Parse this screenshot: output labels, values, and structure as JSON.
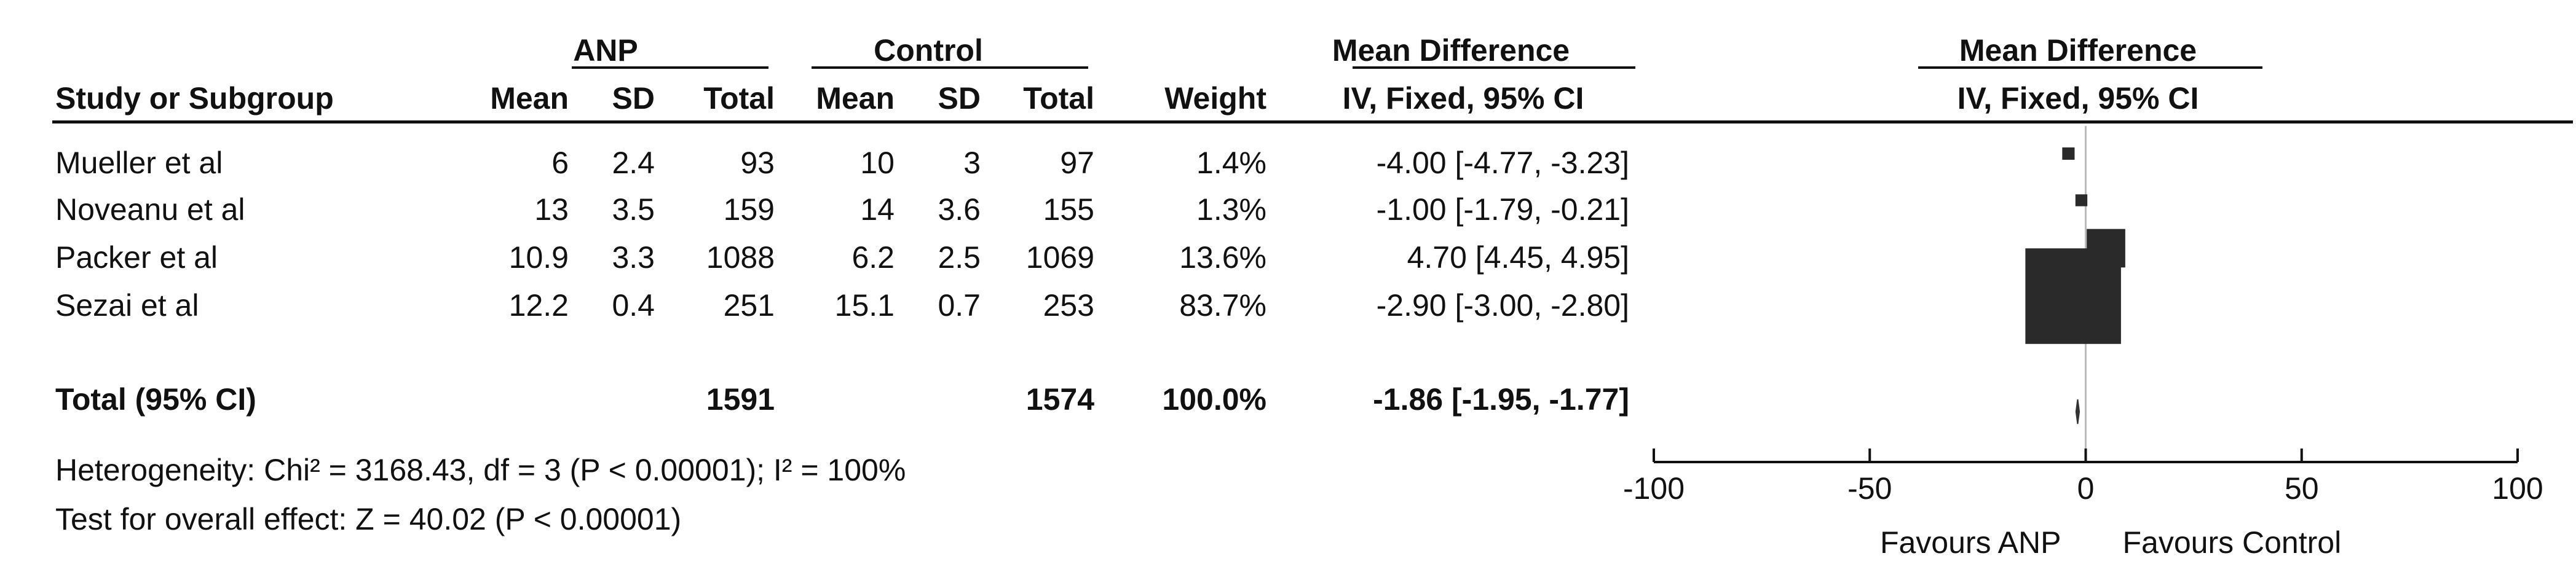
{
  "header": {
    "group_anp": "ANP",
    "group_control": "Control",
    "md_top": "Mean Difference",
    "md_bottom": "IV, Fixed, 95% CI",
    "plot_top": "Mean Difference",
    "plot_bottom": "IV, Fixed, 95% CI",
    "study": "Study or Subgroup",
    "mean": "Mean",
    "sd": "SD",
    "total": "Total",
    "weight": "Weight"
  },
  "studies": [
    {
      "name": "Mueller et al",
      "anp_mean": "6",
      "anp_sd": "2.4",
      "anp_total": "93",
      "ctl_mean": "10",
      "ctl_sd": "3",
      "ctl_total": "97",
      "weight": "1.4%",
      "md": "-4.00 [-4.77, -3.23]"
    },
    {
      "name": "Noveanu et al",
      "anp_mean": "13",
      "anp_sd": "3.5",
      "anp_total": "159",
      "ctl_mean": "14",
      "ctl_sd": "3.6",
      "ctl_total": "155",
      "weight": "1.3%",
      "md": "-1.00 [-1.79, -0.21]"
    },
    {
      "name": "Packer et al",
      "anp_mean": "10.9",
      "anp_sd": "3.3",
      "anp_total": "1088",
      "ctl_mean": "6.2",
      "ctl_sd": "2.5",
      "ctl_total": "1069",
      "weight": "13.6%",
      "md": "4.70 [4.45, 4.95]"
    },
    {
      "name": "Sezai et al",
      "anp_mean": "12.2",
      "anp_sd": "0.4",
      "anp_total": "251",
      "ctl_mean": "15.1",
      "ctl_sd": "0.7",
      "ctl_total": "253",
      "weight": "83.7%",
      "md": "-2.90 [-3.00, -2.80]"
    }
  ],
  "total": {
    "label": "Total (95% CI)",
    "anp_total": "1591",
    "ctl_total": "1574",
    "weight": "100.0%",
    "md": "-1.86 [-1.95, -1.77]"
  },
  "footer": {
    "heterogeneity": "Heterogeneity: Chi² = 3168.43, df = 3 (P < 0.00001); I² = 100%",
    "overall": "Test for overall effect: Z = 40.02 (P < 0.00001)"
  },
  "chart_data": {
    "type": "scatter",
    "title": "Mean Difference",
    "subtitle": "IV, Fixed, 95% CI",
    "xlim": [
      -100,
      100
    ],
    "xticks": [
      -100,
      -50,
      0,
      50,
      100
    ],
    "xtick_labels": [
      "-100",
      "-50",
      "0",
      "50",
      "100"
    ],
    "reference_line": 0,
    "favours_left": "Favours ANP",
    "favours_right": "Favours Control",
    "grid": false,
    "studies": [
      {
        "name": "Mueller et al",
        "md": -4.0,
        "ci": [
          -4.77,
          -3.23
        ],
        "weight": 1.4
      },
      {
        "name": "Noveanu et al",
        "md": -1.0,
        "ci": [
          -1.79,
          -0.21
        ],
        "weight": 1.3
      },
      {
        "name": "Packer et al",
        "md": 4.7,
        "ci": [
          4.45,
          4.95
        ],
        "weight": 13.6
      },
      {
        "name": "Sezai et al",
        "md": -2.9,
        "ci": [
          -3.0,
          -2.8
        ],
        "weight": 83.7
      }
    ],
    "pooled": {
      "name": "Total (95% CI)",
      "md": -1.86,
      "ci": [
        -1.95,
        -1.77
      ]
    }
  }
}
